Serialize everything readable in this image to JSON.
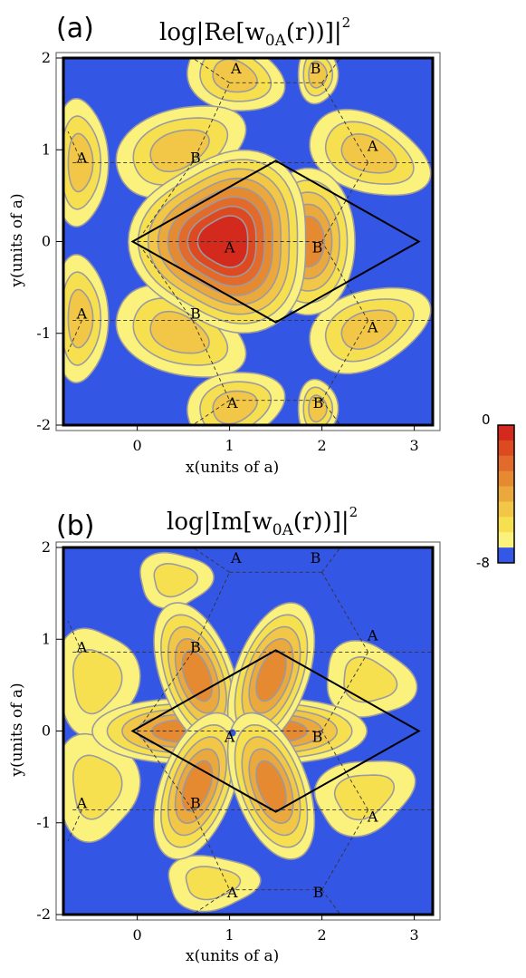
{
  "chart_data": [
    {
      "type": "heatmap",
      "panel_label": "(a)",
      "title": {
        "prefix": "log",
        "func": "Re",
        "w": "w",
        "sub": "0A",
        "arg": "(r)",
        "sup": "2"
      },
      "xlabel": "x(units of a)",
      "ylabel": "y(units of a)",
      "xlim": [
        -0.8,
        3.2
      ],
      "ylim": [
        -2.0,
        2.0
      ],
      "xticks": [
        0,
        1,
        2,
        3
      ],
      "xtick_labels": [
        "0",
        "1",
        "2",
        "3"
      ],
      "yticks": [
        2,
        1,
        0,
        -1,
        -2
      ],
      "ytick_labels": [
        "2",
        "1",
        "0",
        "-1",
        "-2"
      ],
      "site_labels": [
        {
          "text": "A",
          "x": 1.07,
          "y": 1.83
        },
        {
          "text": "B",
          "x": 1.93,
          "y": 1.83
        },
        {
          "text": "A",
          "x": -0.6,
          "y": 0.86
        },
        {
          "text": "B",
          "x": 0.63,
          "y": 0.86
        },
        {
          "text": "A",
          "x": 2.55,
          "y": 0.99
        },
        {
          "text": "A",
          "x": 1.0,
          "y": -0.12
        },
        {
          "text": "B",
          "x": 1.95,
          "y": -0.12
        },
        {
          "text": "A",
          "x": -0.6,
          "y": -0.84
        },
        {
          "text": "B",
          "x": 0.63,
          "y": -0.84
        },
        {
          "text": "A",
          "x": 2.55,
          "y": -0.99
        },
        {
          "text": "A",
          "x": 1.03,
          "y": -1.81
        },
        {
          "text": "B",
          "x": 1.96,
          "y": -1.81
        }
      ]
    },
    {
      "type": "heatmap",
      "panel_label": "(b)",
      "title": {
        "prefix": "log",
        "func": "Im",
        "w": "w",
        "sub": "0A",
        "arg": "(r)",
        "sup": "2"
      },
      "xlabel": "x(units of a)",
      "ylabel": "y(units of a)",
      "xlim": [
        -0.8,
        3.2
      ],
      "ylim": [
        -2.0,
        2.0
      ],
      "xticks": [
        0,
        1,
        2,
        3
      ],
      "xtick_labels": [
        "0",
        "1",
        "2",
        "3"
      ],
      "yticks": [
        2,
        1,
        0,
        -1,
        -2
      ],
      "ytick_labels": [
        "2",
        "1",
        "0",
        "-1",
        "-2"
      ],
      "site_labels": [
        {
          "text": "A",
          "x": 1.07,
          "y": 1.83
        },
        {
          "text": "B",
          "x": 1.93,
          "y": 1.83
        },
        {
          "text": "A",
          "x": -0.6,
          "y": 0.86
        },
        {
          "text": "B",
          "x": 0.63,
          "y": 0.86
        },
        {
          "text": "A",
          "x": 2.55,
          "y": 0.99
        },
        {
          "text": "A",
          "x": 1.0,
          "y": -0.12
        },
        {
          "text": "B",
          "x": 1.95,
          "y": -0.12
        },
        {
          "text": "A",
          "x": -0.6,
          "y": -0.84
        },
        {
          "text": "B",
          "x": 0.63,
          "y": -0.84
        },
        {
          "text": "A",
          "x": 2.55,
          "y": -0.99
        },
        {
          "text": "A",
          "x": 1.03,
          "y": -1.81
        },
        {
          "text": "B",
          "x": 1.96,
          "y": -1.81
        }
      ]
    }
  ],
  "colorbar": {
    "max_label": "0",
    "min_label": "-8",
    "colors": [
      "#d42a1e",
      "#dd4a22",
      "#e26a2a",
      "#e68a32",
      "#eba83c",
      "#f2c646",
      "#f7e04f",
      "#fbf27e",
      "#3557e6"
    ]
  },
  "colors": {
    "background": "#3456e4",
    "contour_line": "#9a9aa0",
    "cell_outline": "#000000"
  }
}
